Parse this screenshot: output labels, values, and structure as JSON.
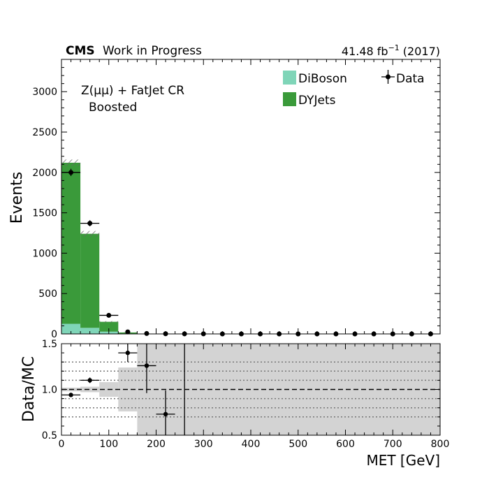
{
  "header": {
    "experiment": "CMS",
    "status": "Work in Progress",
    "lumi": "41.48 fb",
    "lumi_exponent": "−1",
    "year": "(2017)"
  },
  "region": {
    "line1": "Z(μμ) + FatJet CR",
    "line2": "Boosted"
  },
  "chart_data": [
    {
      "type": "bar",
      "stacked": true,
      "bin_edges": [
        0,
        40,
        80,
        120,
        160,
        200,
        240,
        280,
        320,
        360,
        400,
        440,
        480,
        520,
        560,
        600,
        640,
        680,
        720,
        760,
        800
      ],
      "series": [
        {
          "name": "DiBoson",
          "color": "#7fd5b8",
          "values": [
            125,
            75,
            28,
            3,
            0,
            0,
            0,
            0,
            0,
            0,
            0,
            0,
            0,
            0,
            0,
            0,
            0,
            0,
            0,
            0
          ]
        },
        {
          "name": "DYJets",
          "color": "#3a9a3a",
          "values": [
            1995,
            1165,
            122,
            15,
            3,
            2,
            1,
            1,
            0,
            0,
            0,
            0,
            0,
            0,
            0,
            0,
            0,
            0,
            0,
            0
          ]
        }
      ],
      "mc_total_uncertainty": [
        40,
        35,
        8,
        3,
        1,
        1,
        1,
        1,
        0,
        0,
        0,
        0,
        0,
        0,
        0,
        0,
        0,
        0,
        0,
        0
      ],
      "data": {
        "name": "Data",
        "x": [
          20,
          60,
          100,
          140,
          180,
          220,
          260,
          300,
          340,
          380,
          420,
          460,
          500,
          540,
          580,
          620,
          660,
          700,
          740,
          780
        ],
        "y": [
          2000,
          1370,
          230,
          25,
          5,
          2,
          1,
          1,
          0,
          0,
          0,
          0,
          0,
          0,
          0,
          0,
          0,
          0,
          0,
          0
        ]
      },
      "xlim": [
        0,
        800
      ],
      "ylim": [
        0,
        3400
      ],
      "yticks": [
        0,
        500,
        1000,
        1500,
        2000,
        2500,
        3000
      ],
      "ylabel": "Events",
      "legend_position": "top-right",
      "legend_labels": {
        "diboson": "DiBoson",
        "dyjets": "DYJets",
        "data": "Data"
      }
    },
    {
      "type": "scatter",
      "role": "ratio",
      "x": [
        20,
        60,
        140,
        180,
        220
      ],
      "y": [
        0.94,
        1.1,
        1.4,
        1.26,
        0.73
      ],
      "yerr": [
        0.02,
        0.03,
        0.1,
        0.3,
        0.26
      ],
      "xerr": 20,
      "unc_band": [
        {
          "x0": 0,
          "x1": 40,
          "lo": 0.98,
          "hi": 1.02
        },
        {
          "x0": 40,
          "x1": 80,
          "lo": 0.97,
          "hi": 1.03
        },
        {
          "x0": 80,
          "x1": 120,
          "lo": 0.92,
          "hi": 1.08
        },
        {
          "x0": 120,
          "x1": 160,
          "lo": 0.76,
          "hi": 1.24
        },
        {
          "x0": 160,
          "x1": 800,
          "lo": 0.5,
          "hi": 1.5
        }
      ],
      "reference_lines": [
        0.7,
        0.8,
        0.9,
        1.1,
        1.2,
        1.3
      ],
      "xlim": [
        0,
        800
      ],
      "ylim": [
        0.5,
        1.5
      ],
      "yticks": [
        "0.5",
        "1.0",
        "1.5"
      ],
      "xticks": [
        "0",
        "100",
        "200",
        "300",
        "400",
        "500",
        "600",
        "700",
        "800"
      ],
      "xlabel": "MET [GeV]",
      "ylabel": "Data/MC"
    }
  ]
}
